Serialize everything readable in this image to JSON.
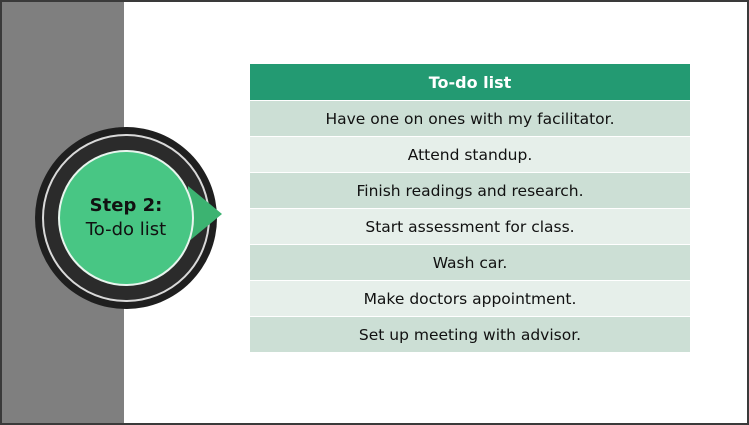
{
  "step": {
    "title": "Step 2:",
    "subtitle": "To-do list"
  },
  "todo": {
    "header": "To-do list",
    "items": [
      "Have one on ones with my facilitator.",
      "Attend standup.",
      "Finish readings and research.",
      "Start assessment for class.",
      "Wash car.",
      "Make doctors appointment.",
      "Set up meeting with advisor."
    ]
  },
  "colors": {
    "side_bar": "#7f7f7f",
    "ring": "#1f1f1f",
    "step_circle": "#48c684",
    "pointer": "#3cb371",
    "header": "#239a72",
    "row_dark": "#ccdfd5",
    "row_light": "#e6efea"
  }
}
